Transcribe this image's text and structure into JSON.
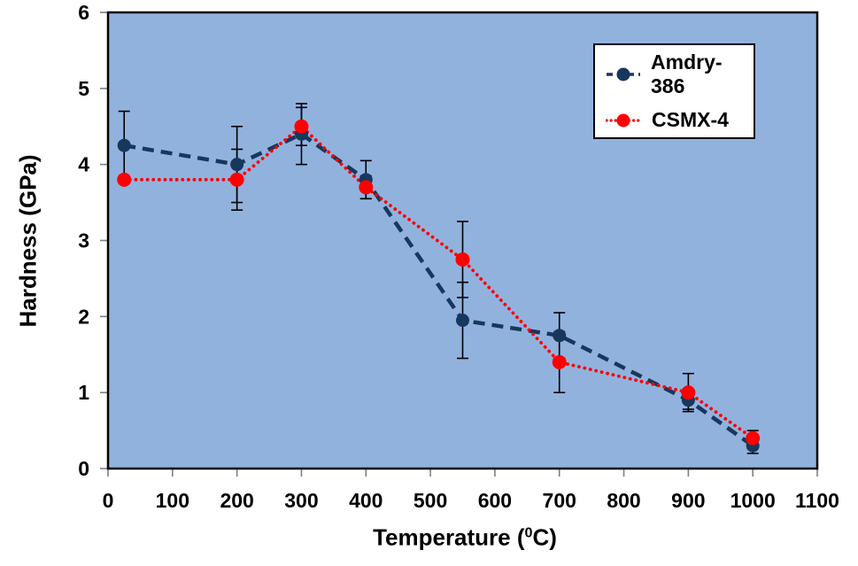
{
  "chart_data": {
    "type": "line",
    "title": "",
    "xlabel": {
      "prefix": "Temperature (",
      "sup": "0",
      "suffix": "C)"
    },
    "ylabel": "Hardness (GPa)",
    "xlim": [
      0,
      1100
    ],
    "ylim": [
      0,
      6
    ],
    "x_ticks": [
      0,
      100,
      200,
      300,
      400,
      500,
      600,
      700,
      800,
      900,
      1000,
      1100
    ],
    "y_ticks": [
      0,
      1,
      2,
      3,
      4,
      5,
      6
    ],
    "grid": false,
    "legend_position": "top-right",
    "plot_bg_color": "#92B2DE",
    "plot_border_color": "#000000",
    "tick_color": "#808080",
    "error_bar_color": "#000000",
    "x": [
      25,
      200,
      300,
      400,
      550,
      700,
      900,
      1000
    ],
    "series": [
      {
        "name": "Amdry-386",
        "color": "#17375D",
        "line_style": "dashed",
        "marker": "circle",
        "marker_r": 7.5,
        "values": [
          4.25,
          4.0,
          4.4,
          3.8,
          1.95,
          1.75,
          0.9,
          0.3
        ],
        "errors": [
          0.45,
          0.5,
          0.4,
          0.25,
          0.5,
          0.3,
          0.12,
          0.1
        ]
      },
      {
        "name": "CSMX-4",
        "color": "#FF0000",
        "line_style": "dotted",
        "marker": "circle",
        "marker_r": 8,
        "values": [
          3.8,
          3.8,
          4.5,
          3.7,
          2.75,
          1.4,
          1.0,
          0.4
        ],
        "errors": [
          0,
          0.4,
          0.25,
          0.15,
          0.5,
          0.4,
          0.25,
          0.1
        ]
      }
    ]
  }
}
